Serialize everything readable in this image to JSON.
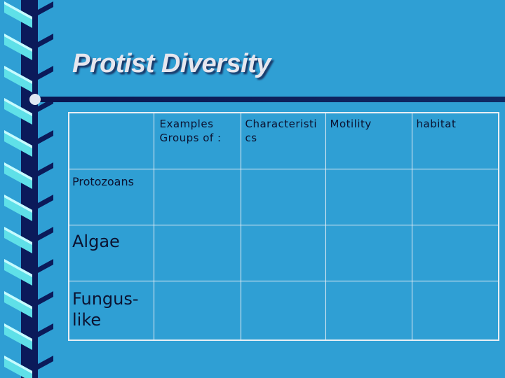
{
  "title": "Protist Diversity",
  "table": {
    "columns": [
      {
        "lines": [
          "Examples",
          "Groups of :"
        ]
      },
      "Characteristics",
      "Motility",
      "habitat"
    ],
    "rows": [
      "Protozoans",
      "Algae",
      "Fungus-like"
    ]
  }
}
